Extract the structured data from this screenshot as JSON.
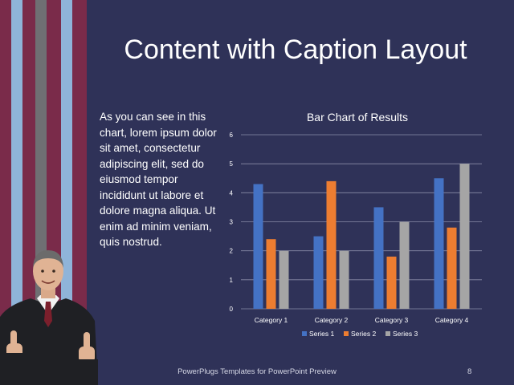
{
  "slide": {
    "title": "Content with Caption Layout",
    "caption": "As you can see in this chart, lorem ipsum dolor sit amet, consectetur adipiscing elit, sed do eiusmod tempor incididunt ut labore et dolore magna aliqua. Ut enim ad minim veniam, quis nostrud.",
    "footer": "PowerPlugs Templates for PowerPoint Preview",
    "page_number": "8"
  },
  "colors": {
    "background": "#2f3258",
    "stripe_maroon": "#7a2b4a",
    "stripe_light_blue": "#8fb4d9",
    "stripe_gray": "#6f6f73",
    "series_1": "#4472c4",
    "series_2": "#ed7d31",
    "series_3": "#a5a5a5"
  },
  "chart_data": {
    "type": "bar",
    "title": "Bar Chart of Results",
    "categories": [
      "Category 1",
      "Category 2",
      "Category 3",
      "Category 4"
    ],
    "series": [
      {
        "name": "Series 1",
        "values": [
          4.3,
          2.5,
          3.5,
          4.5
        ]
      },
      {
        "name": "Series 2",
        "values": [
          2.4,
          4.4,
          1.8,
          2.8
        ]
      },
      {
        "name": "Series 3",
        "values": [
          2,
          2,
          3,
          5
        ]
      }
    ],
    "ylim": [
      0,
      6
    ],
    "yticks": [
      "0",
      "1",
      "2",
      "3",
      "4",
      "5",
      "6"
    ],
    "grid": true,
    "legend": "bottom"
  }
}
